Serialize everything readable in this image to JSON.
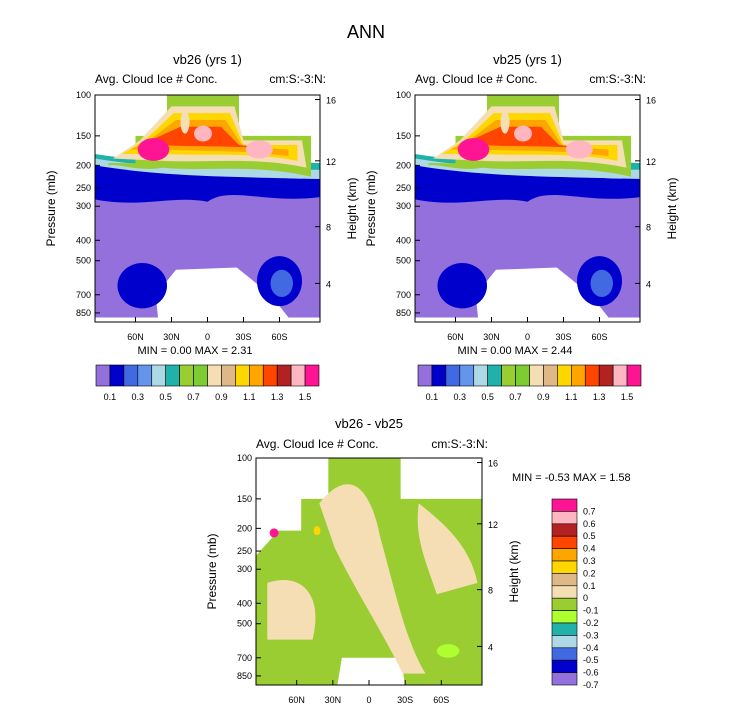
{
  "page_title": "ANN",
  "colors": {
    "top_scale": [
      "#9370db",
      "#0000cd",
      "#4169e1",
      "#6495ed",
      "#add8e6",
      "#20b2aa",
      "#9acd32",
      "#7ccd32",
      "#f5deb3",
      "#deb887",
      "#ffd700",
      "#ffa500",
      "#ff4500",
      "#b22222",
      "#ffb6c1",
      "#ff1493"
    ],
    "diff_scale": [
      "#9370db",
      "#0000cd",
      "#4169e1",
      "#add8e6",
      "#20b2aa",
      "#adff2f",
      "#9acd32",
      "#f5deb3",
      "#deb887",
      "#ffd700",
      "#ffa500",
      "#ff4500",
      "#b22222",
      "#ffb6c1",
      "#ff1493"
    ]
  },
  "chart_data": [
    {
      "type": "heatmap",
      "title": "vb26 (yrs 1)",
      "left_label": "Avg. Cloud Ice # Conc.",
      "right_label": "cm:S:-3:N:",
      "ylabel": "Pressure (mb)",
      "ylabel_right": "Height (km)",
      "xlabel": "",
      "pressure_ticks": [
        "100",
        "150",
        "200",
        "250",
        "300",
        "400",
        "500",
        "700",
        "850"
      ],
      "height_ticks": [
        "16",
        "12",
        "8",
        "4"
      ],
      "lat_ticks": [
        "60N",
        "30N",
        "0",
        "30S",
        "60S"
      ],
      "stats": {
        "min_label": "MIN =",
        "min": "0.00",
        "max_label": "MAX =",
        "max": "2.31"
      },
      "colorbar_labels": [
        "0.1",
        "0.3",
        "0.5",
        "0.7",
        "0.9",
        "1.1",
        "1.3",
        "1.5"
      ],
      "contour_levels": [
        0.1,
        0.2,
        0.3,
        0.4,
        0.5,
        0.6,
        0.7,
        0.8,
        0.9,
        1.0,
        1.1,
        1.2,
        1.3,
        1.4,
        1.5
      ]
    },
    {
      "type": "heatmap",
      "title": "vb25 (yrs 1)",
      "left_label": "Avg. Cloud Ice # Conc.",
      "right_label": "cm:S:-3:N:",
      "ylabel": "Pressure (mb)",
      "ylabel_right": "Height (km)",
      "xlabel": "",
      "pressure_ticks": [
        "100",
        "150",
        "200",
        "250",
        "300",
        "400",
        "500",
        "700",
        "850"
      ],
      "height_ticks": [
        "16",
        "12",
        "8",
        "4"
      ],
      "lat_ticks": [
        "60N",
        "30N",
        "0",
        "30S",
        "60S"
      ],
      "stats": {
        "min_label": "MIN =",
        "min": "0.00",
        "max_label": "MAX =",
        "max": "2.44"
      },
      "colorbar_labels": [
        "0.1",
        "0.3",
        "0.5",
        "0.7",
        "0.9",
        "1.1",
        "1.3",
        "1.5"
      ],
      "contour_levels": [
        0.1,
        0.2,
        0.3,
        0.4,
        0.5,
        0.6,
        0.7,
        0.8,
        0.9,
        1.0,
        1.1,
        1.2,
        1.3,
        1.4,
        1.5
      ]
    },
    {
      "type": "heatmap",
      "title": "vb26 - vb25",
      "left_label": "Avg. Cloud Ice # Conc.",
      "right_label": "cm:S:-3:N:",
      "ylabel": "Pressure (mb)",
      "ylabel_right": "Height (km)",
      "xlabel": "",
      "pressure_ticks": [
        "100",
        "150",
        "200",
        "250",
        "300",
        "400",
        "500",
        "700",
        "850"
      ],
      "height_ticks": [
        "16",
        "12",
        "8",
        "4"
      ],
      "lat_ticks": [
        "60N",
        "30N",
        "0",
        "30S",
        "60S"
      ],
      "stats": {
        "min_label": "MIN =",
        "min": "-0.53",
        "max_label": "MAX =",
        "max": "1.58"
      },
      "colorbar_labels": [
        "0.7",
        "0.6",
        "0.5",
        "0.4",
        "0.3",
        "0.2",
        "0.1",
        "0",
        "-0.1",
        "-0.2",
        "-0.3",
        "-0.4",
        "-0.5",
        "-0.6",
        "-0.7"
      ],
      "contour_levels": [
        -0.7,
        -0.6,
        -0.5,
        -0.4,
        -0.3,
        -0.2,
        -0.1,
        0,
        0.1,
        0.2,
        0.3,
        0.4,
        0.5,
        0.6,
        0.7
      ]
    }
  ]
}
